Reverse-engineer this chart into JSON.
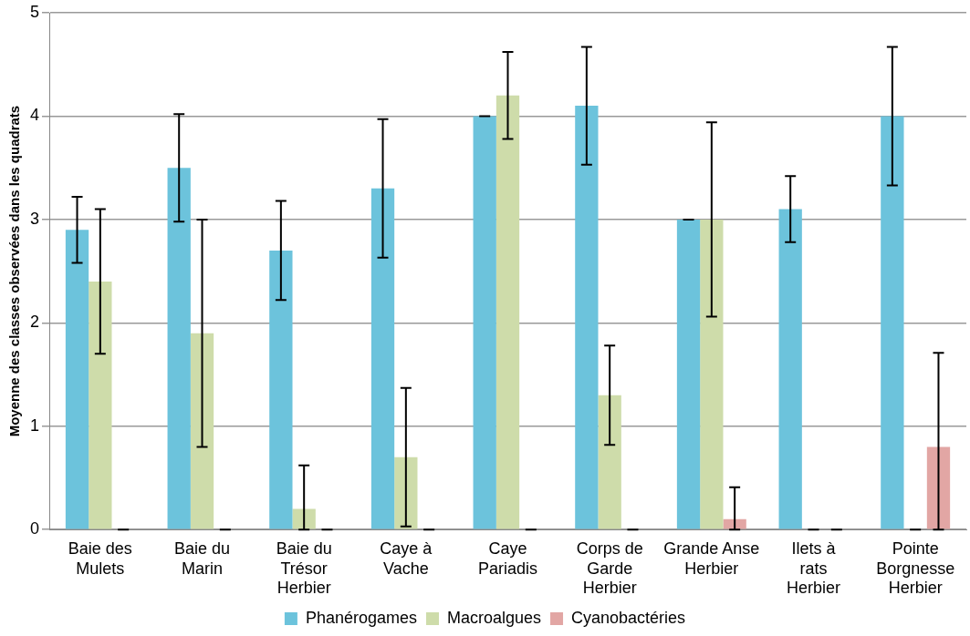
{
  "chart_data": {
    "type": "bar",
    "ylabel": "Moyenne des classes observées dans les quadrats",
    "categories": [
      "Baie des Mulets",
      "Baie du Marin",
      "Baie du Trésor Herbier",
      "Caye à Vache",
      "Caye Pariadis",
      "Corps de Garde Herbier",
      "Grande Anse Herbier",
      "Ilets à rats Herbier",
      "Pointe Borgnesse Herbier"
    ],
    "series": [
      {
        "name": "Phanérogames",
        "color": "#6cc3dc",
        "values": [
          2.9,
          3.5,
          2.7,
          3.3,
          4.0,
          4.1,
          3.0,
          3.1,
          4.0
        ],
        "errors": [
          0.32,
          0.52,
          0.48,
          0.67,
          0,
          0.57,
          0,
          0.32,
          0.67
        ]
      },
      {
        "name": "Macroalgues",
        "color": "#cedcaa",
        "values": [
          2.4,
          1.9,
          0.2,
          0.7,
          4.2,
          1.3,
          3.0,
          0,
          0
        ],
        "errors": [
          0.7,
          1.1,
          [
            0,
            0.62
          ],
          0.67,
          0.42,
          0.48,
          0.94,
          0,
          0
        ]
      },
      {
        "name": "Cyanobactéries",
        "color": "#e2a6a4",
        "values": [
          0,
          0,
          0,
          0,
          0,
          0,
          0.1,
          0,
          0.8
        ],
        "errors": [
          0,
          0,
          0,
          0,
          0,
          0,
          [
            0,
            0.41
          ],
          0,
          [
            0,
            1.71
          ]
        ]
      }
    ],
    "ylim": [
      0,
      5
    ],
    "yticks": [
      0,
      1,
      2,
      3,
      4,
      5
    ],
    "grid": "y",
    "legend": "bottom"
  }
}
